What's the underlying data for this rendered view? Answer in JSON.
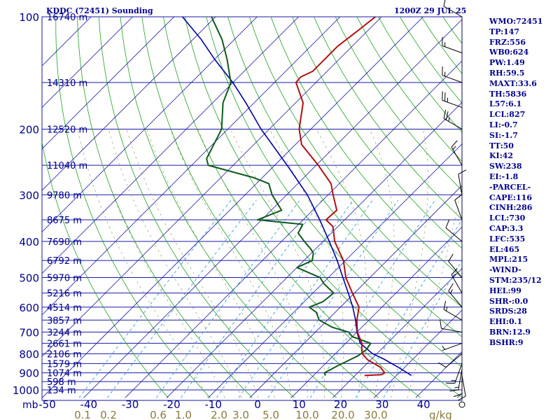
{
  "header": {
    "station": "KDDC (72451) Sounding",
    "time": "1200Z 29 JUL 25"
  },
  "stats": [
    "WMO:72451",
    "TP:147",
    "FRZ:556",
    "WB0:624",
    "PW:1.49",
    "RH:59.5",
    "MAXT:33.6",
    "TH:5836",
    "L57:6.1",
    "LCL:827",
    "LI:-0.7",
    "SI:-1.7",
    "TT:50",
    "KI:42",
    "SW:238",
    "EI:-1.8",
    "-PARCEL-",
    "CAPE:116",
    "CINH:286",
    "LCL:730",
    "CAP:3.3",
    "LFC:535",
    "EL:465",
    "MPL:215",
    "-WIND-",
    "STM:235/12",
    "HEL:99",
    "SHR-:0.0",
    "SRDS:28",
    "EHI:0.1",
    "BRN:12.9",
    "BSHR:9"
  ],
  "colors": {
    "isobar": "#1a1aa6",
    "isotherm": "#1a1aa6",
    "dry_adiabat": "#1fa01f",
    "moist_adiabat": "#9a9a6a",
    "mixing_ratio": "#3a9ad9",
    "temperature": "#b01010",
    "dewpoint": "#0e5a1a",
    "parcel": "#0000a0",
    "labels": "#00008b",
    "mixing_labels": "#8b7a3a",
    "wind": "#000000"
  },
  "chart_data": {
    "type": "skew-t",
    "pressure_levels_label": "mb",
    "pressure_ticks": [
      100,
      200,
      300,
      400,
      500,
      600,
      700,
      800,
      900,
      1000
    ],
    "temperature_ticks": [
      -50,
      -40,
      -30,
      -20,
      -10,
      0,
      10,
      20,
      30,
      40
    ],
    "mixing_ratio_ticks": [
      "0.1",
      "0.2",
      "0.6",
      "1.0",
      "2.0",
      "3.0",
      "5.0",
      "10.0",
      "20.0",
      "30.0"
    ],
    "mixing_ratio_unit": "g/kg",
    "heights": [
      {
        "p": 100,
        "h": "16740 m"
      },
      {
        "p": 150,
        "h": "14310 m"
      },
      {
        "p": 200,
        "h": "12520 m"
      },
      {
        "p": 250,
        "h": "11040 m"
      },
      {
        "p": 300,
        "h": "9780 m"
      },
      {
        "p": 350,
        "h": "8675 m"
      },
      {
        "p": 400,
        "h": "7690 m"
      },
      {
        "p": 450,
        "h": "6792 m"
      },
      {
        "p": 500,
        "h": "5970 m"
      },
      {
        "p": 550,
        "h": "5216 m"
      },
      {
        "p": 600,
        "h": "4514 m"
      },
      {
        "p": 650,
        "h": "3857 m"
      },
      {
        "p": 700,
        "h": "3244 m"
      },
      {
        "p": 750,
        "h": "2661 m"
      },
      {
        "p": 800,
        "h": "2106 m"
      },
      {
        "p": 850,
        "h": "1579 m"
      },
      {
        "p": 900,
        "h": "1074 m"
      },
      {
        "p": 950,
        "h": "598 m"
      },
      {
        "p": 1000,
        "h": "134 m"
      }
    ],
    "temperature_profile": [
      [
        915,
        22.3
      ],
      [
        910,
        26.2
      ],
      [
        900,
        26.5
      ],
      [
        870,
        24.2
      ],
      [
        830,
        19.2
      ],
      [
        800,
        16.5
      ],
      [
        780,
        15.4
      ],
      [
        750,
        13.9
      ],
      [
        700,
        10.1
      ],
      [
        650,
        7.1
      ],
      [
        600,
        4.5
      ],
      [
        550,
        -0.5
      ],
      [
        500,
        -5.8
      ],
      [
        450,
        -10.5
      ],
      [
        400,
        -17.2
      ],
      [
        365,
        -21.2
      ],
      [
        350,
        -24.5
      ],
      [
        330,
        -24.2
      ],
      [
        300,
        -28.8
      ],
      [
        280,
        -32.0
      ],
      [
        250,
        -39.5
      ],
      [
        220,
        -48.5
      ],
      [
        200,
        -52.8
      ],
      [
        170,
        -58.2
      ],
      [
        150,
        -64.8
      ],
      [
        145,
        -65.0
      ],
      [
        140,
        -63.5
      ],
      [
        120,
        -63.5
      ],
      [
        110,
        -62.5
      ],
      [
        100,
        -61.5
      ]
    ],
    "dewpoint_profile": [
      [
        915,
        12.9
      ],
      [
        900,
        12.0
      ],
      [
        880,
        12.8
      ],
      [
        860,
        13.5
      ],
      [
        830,
        15.0
      ],
      [
        810,
        16.0
      ],
      [
        780,
        16.5
      ],
      [
        750,
        16.0
      ],
      [
        720,
        10.0
      ],
      [
        700,
        8.0
      ],
      [
        680,
        3.0
      ],
      [
        650,
        -2.0
      ],
      [
        620,
        -4.5
      ],
      [
        600,
        -7.5
      ],
      [
        580,
        -5.5
      ],
      [
        550,
        -5.0
      ],
      [
        520,
        -9.5
      ],
      [
        500,
        -12.0
      ],
      [
        470,
        -20.0
      ],
      [
        450,
        -18.0
      ],
      [
        430,
        -19.5
      ],
      [
        420,
        -21.0
      ],
      [
        400,
        -24.5
      ],
      [
        380,
        -28.0
      ],
      [
        360,
        -29.0
      ],
      [
        350,
        -41.0
      ],
      [
        330,
        -37.5
      ],
      [
        300,
        -43.5
      ],
      [
        280,
        -47.0
      ],
      [
        270,
        -52.0
      ],
      [
        250,
        -66.0
      ],
      [
        240,
        -68.0
      ],
      [
        200,
        -71.5
      ],
      [
        170,
        -77.5
      ],
      [
        150,
        -80.5
      ],
      [
        130,
        -87.0
      ],
      [
        115,
        -93.0
      ],
      [
        100,
        -101.0
      ]
    ],
    "parcel_profile": [
      [
        915,
        33.6
      ],
      [
        870,
        28.5
      ],
      [
        827,
        23.0
      ],
      [
        800,
        19.0
      ],
      [
        750,
        13.5
      ],
      [
        700,
        10.0
      ],
      [
        650,
        6.8
      ],
      [
        600,
        3.0
      ],
      [
        550,
        -1.5
      ],
      [
        500,
        -6.5
      ],
      [
        450,
        -12.0
      ],
      [
        400,
        -18.5
      ],
      [
        350,
        -26.0
      ],
      [
        300,
        -35.0
      ],
      [
        250,
        -47.0
      ],
      [
        200,
        -62.0
      ],
      [
        170,
        -72.0
      ],
      [
        150,
        -80.0
      ],
      [
        130,
        -90.0
      ],
      [
        115,
        -98.0
      ],
      [
        100,
        -108.0
      ]
    ],
    "wind_barbs": [
      {
        "p": 915,
        "dir": 170,
        "kt": 10
      },
      {
        "p": 900,
        "dir": 180,
        "kt": 10
      },
      {
        "p": 880,
        "dir": 190,
        "kt": 15
      },
      {
        "p": 850,
        "dir": 200,
        "kt": 15
      },
      {
        "p": 800,
        "dir": 230,
        "kt": 10
      },
      {
        "p": 750,
        "dir": 250,
        "kt": 5
      },
      {
        "p": 700,
        "dir": 280,
        "kt": 10
      },
      {
        "p": 650,
        "dir": 300,
        "kt": 15
      },
      {
        "p": 600,
        "dir": 320,
        "kt": 15
      },
      {
        "p": 550,
        "dir": 330,
        "kt": 15
      },
      {
        "p": 500,
        "dir": 320,
        "kt": 10
      },
      {
        "p": 400,
        "dir": 310,
        "kt": 10
      },
      {
        "p": 350,
        "dir": 340,
        "kt": 10
      },
      {
        "p": 300,
        "dir": 350,
        "kt": 10
      },
      {
        "p": 250,
        "dir": 330,
        "kt": 15
      },
      {
        "p": 200,
        "dir": 300,
        "kt": 25
      },
      {
        "p": 175,
        "dir": 290,
        "kt": 25
      },
      {
        "p": 150,
        "dir": 290,
        "kt": 15
      },
      {
        "p": 125,
        "dir": 290,
        "kt": 15
      },
      {
        "p": 100,
        "dir": 300,
        "kt": 10
      }
    ]
  }
}
